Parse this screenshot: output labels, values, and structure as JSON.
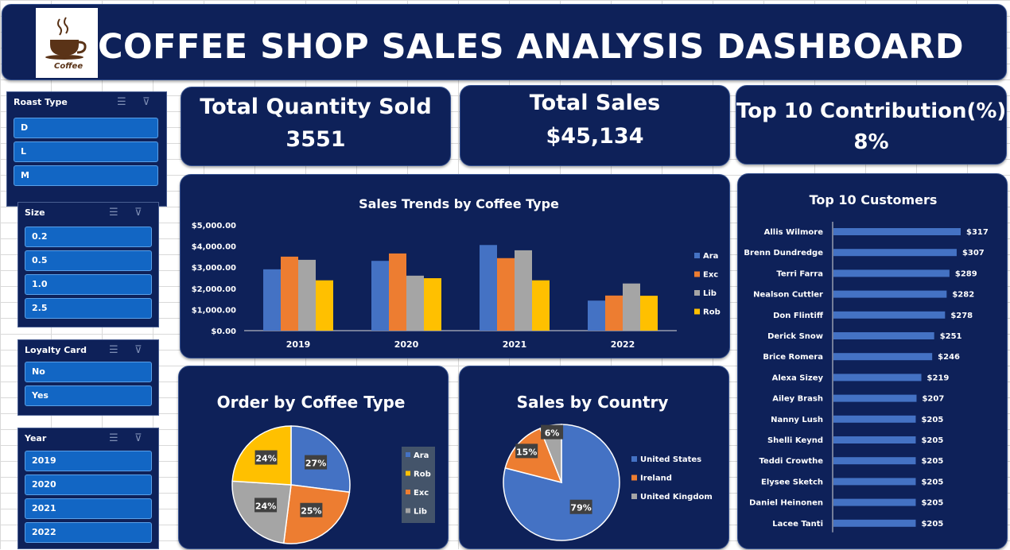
{
  "header": {
    "title": "COFFEE SHOP SALES ANALYSIS DASHBOARD",
    "logo_text": "Coffee"
  },
  "colors": {
    "panel": "#0e2159",
    "slicer_item": "#1266c4",
    "ara": "#4472c4",
    "exc": "#ed7d31",
    "lib": "#a5a5a5",
    "rob": "#ffc000"
  },
  "slicers": [
    {
      "title": "Roast Type",
      "items": [
        "D",
        "L",
        "M"
      ]
    },
    {
      "title": "Size",
      "items": [
        "0.2",
        "0.5",
        "1.0",
        "2.5"
      ]
    },
    {
      "title": "Loyalty Card",
      "items": [
        "No",
        "Yes"
      ]
    },
    {
      "title": "Year",
      "items": [
        "2019",
        "2020",
        "2021",
        "2022"
      ]
    }
  ],
  "kpis": [
    {
      "label": "Total Quantity Sold",
      "value": "3551"
    },
    {
      "label": "Total Sales",
      "value": "$45,134"
    },
    {
      "label": "Top 10 Contribution(%)",
      "value": "8%"
    }
  ],
  "chart_data": [
    {
      "type": "bar",
      "title": "Sales Trends by Coffee Type",
      "categories": [
        "2019",
        "2020",
        "2021",
        "2022"
      ],
      "series": [
        {
          "name": "Ara",
          "color": "#4472c4",
          "values": [
            2900,
            3300,
            4050,
            1420
          ]
        },
        {
          "name": "Exc",
          "color": "#ed7d31",
          "values": [
            3500,
            3650,
            3430,
            1660
          ]
        },
        {
          "name": "Lib",
          "color": "#a5a5a5",
          "values": [
            3350,
            2600,
            3800,
            2230
          ]
        },
        {
          "name": "Rob",
          "color": "#ffc000",
          "values": [
            2380,
            2480,
            2380,
            1650
          ]
        }
      ],
      "ylim": [
        0,
        5000
      ],
      "yticks": [
        "$0.00",
        "$1,000.00",
        "$2,000.00",
        "$3,000.00",
        "$4,000.00",
        "$5,000.00"
      ],
      "legend": "right",
      "grid": false
    },
    {
      "type": "pie",
      "title": "Order by Coffee Type",
      "slices": [
        {
          "label": "Ara",
          "value": 27,
          "color": "#4472c4"
        },
        {
          "label": "Exc",
          "value": 25,
          "color": "#ed7d31"
        },
        {
          "label": "Lib",
          "value": 24,
          "color": "#a5a5a5"
        },
        {
          "label": "Rob",
          "value": 24,
          "color": "#ffc000"
        }
      ],
      "legend_order": [
        "Ara",
        "Rob",
        "Exc",
        "Lib"
      ],
      "legend": "right"
    },
    {
      "type": "pie",
      "title": "Sales by Country",
      "slices": [
        {
          "label": "United States",
          "value": 79,
          "color": "#4472c4"
        },
        {
          "label": "Ireland",
          "value": 15,
          "color": "#ed7d31"
        },
        {
          "label": "United Kingdom",
          "value": 6,
          "color": "#a5a5a5"
        }
      ],
      "legend": "right"
    },
    {
      "type": "bar",
      "orientation": "horizontal",
      "title": "Top 10 Customers",
      "categories": [
        "Allis Wilmore",
        "Brenn Dundredge",
        "Terri Farra",
        "Nealson Cuttler",
        "Don Flintiff",
        "Derick Snow",
        "Brice Romera",
        "Alexa Sizey",
        "Ailey Brash",
        "Nanny Lush",
        "Shelli Keynd",
        "Teddi Crowthe",
        "Elysee Sketch",
        "Daniel Heinonen",
        "Lacee Tanti"
      ],
      "values": [
        317,
        307,
        289,
        282,
        278,
        251,
        246,
        219,
        207,
        205,
        205,
        205,
        205,
        205,
        205
      ],
      "value_labels": [
        "$317",
        "$307",
        "$289",
        "$282",
        "$278",
        "$251",
        "$246",
        "$219",
        "$207",
        "$205",
        "$205",
        "$205",
        "$205",
        "$205",
        "$205"
      ],
      "color": "#4472c4"
    }
  ]
}
